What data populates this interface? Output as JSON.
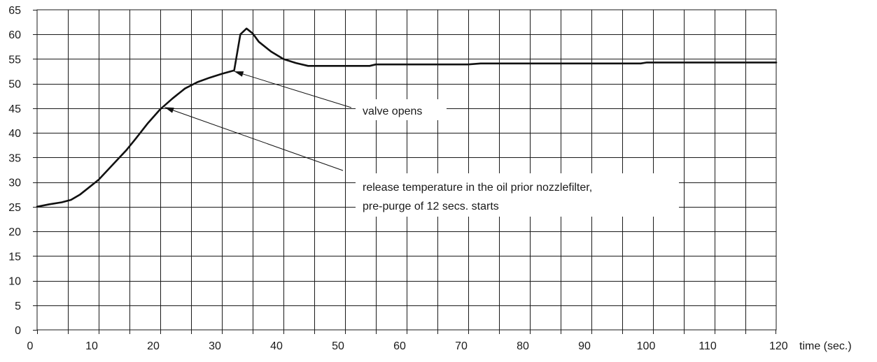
{
  "chart_data": {
    "type": "line",
    "title": "",
    "xlabel": "time (sec.)",
    "ylabel": "",
    "xlim": [
      0,
      120
    ],
    "ylim": [
      0,
      65
    ],
    "x_ticks": [
      0,
      10,
      20,
      30,
      40,
      50,
      60,
      70,
      80,
      90,
      100,
      110,
      120
    ],
    "y_ticks": [
      0,
      5,
      10,
      15,
      20,
      25,
      30,
      35,
      40,
      45,
      50,
      55,
      60,
      65
    ],
    "x_tick_labels": [
      "0",
      "10",
      "20",
      "30",
      "40",
      "50",
      "60",
      "70",
      "80",
      "90",
      "100",
      "110",
      "120"
    ],
    "y_tick_labels": [
      "0",
      "5",
      "10",
      "15",
      "20",
      "25",
      "30",
      "35",
      "40",
      "45",
      "50",
      "55",
      "60",
      "65"
    ],
    "grid": true,
    "series": [
      {
        "color": "#111111",
        "x": [
          0,
          2,
          4,
          5.5,
          7,
          8.5,
          10,
          11.5,
          13,
          14.5,
          16,
          18,
          20,
          22,
          24,
          26,
          28,
          30,
          32,
          33,
          34,
          35,
          36,
          38,
          40,
          42,
          44,
          50,
          54,
          55,
          70,
          72,
          98,
          99,
          120
        ],
        "y": [
          25,
          25.5,
          25.9,
          26.4,
          27.5,
          29,
          30.5,
          32.5,
          34.5,
          36.5,
          38.8,
          42,
          44.8,
          47,
          49,
          50.3,
          51.2,
          52,
          52.7,
          60,
          61.2,
          60.2,
          58.5,
          56.5,
          55,
          54.2,
          53.6,
          53.6,
          53.6,
          53.9,
          53.9,
          54.1,
          54.1,
          54.3,
          54.3
        ]
      }
    ],
    "annotations": [
      {
        "text": "valve opens",
        "arrow_to": [
          32,
          52.5
        ]
      },
      {
        "lines": [
          "release temperature in the oil prior nozzlefilter,",
          "pre-purge of 12 secs. starts"
        ],
        "arrow_to": [
          20.7,
          45.2
        ]
      }
    ]
  }
}
